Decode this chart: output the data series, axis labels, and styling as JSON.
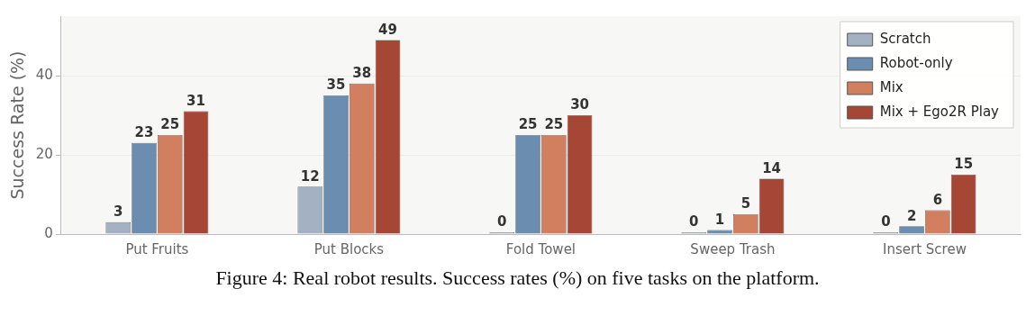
{
  "chart_data": {
    "type": "bar",
    "ylabel": "Success Rate (%)",
    "categories": [
      "Put Fruits",
      "Put Blocks",
      "Fold Towel",
      "Sweep Trash",
      "Insert Screw"
    ],
    "series": [
      {
        "name": "Scratch",
        "color": "#a3b1c3",
        "values": [
          3,
          12,
          0,
          0,
          0
        ]
      },
      {
        "name": "Robot-only",
        "color": "#6a8db0",
        "values": [
          23,
          35,
          25,
          1,
          2
        ]
      },
      {
        "name": "Mix",
        "color": "#d17f5e",
        "values": [
          25,
          38,
          25,
          5,
          6
        ]
      },
      {
        "name": "Mix + Ego2R Play",
        "color": "#a64634",
        "values": [
          31,
          49,
          30,
          14,
          15
        ]
      }
    ],
    "ylim": [
      0,
      55
    ],
    "yticks": [
      0,
      20,
      40
    ],
    "grid": "y",
    "legend": "top right",
    "data_labels": true,
    "annotations": [
      "Figure 4: Real robot results. Success rates (%) on five tasks on the platform."
    ]
  }
}
